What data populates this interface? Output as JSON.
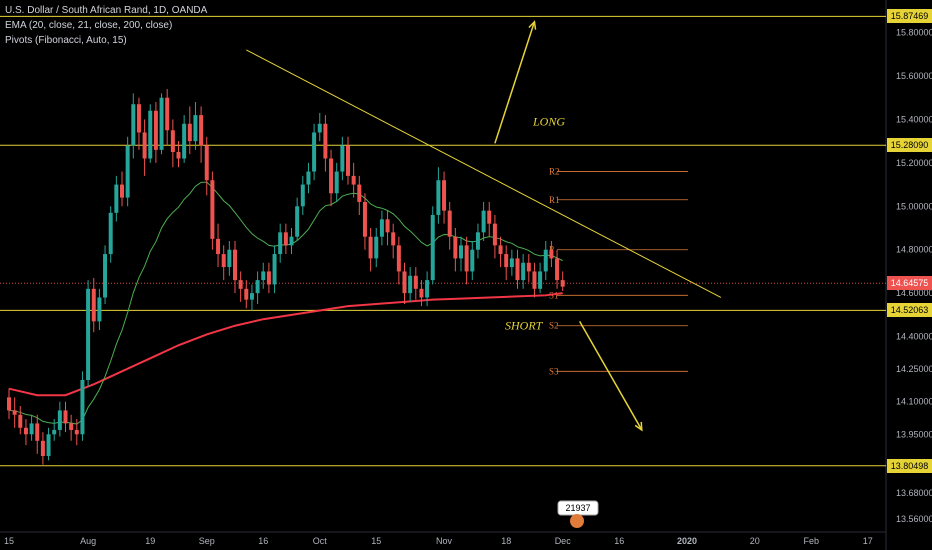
{
  "header": {
    "title": "U.S. Dollar / South African Rand, 1D, OANDA",
    "ema": "EMA (20, close, 21, close, 200, close)",
    "pivots": "Pivots (Fibonacci, Auto, 15)"
  },
  "colors": {
    "background": "#000000",
    "up": "#26a69a",
    "down": "#ef5350",
    "ema_fast": "#4caf50",
    "ema_slow": "#f23645",
    "level_line": "#e6d437",
    "pivot": "#e07b39",
    "price_line": "#ef5350"
  },
  "chart_data": {
    "type": "candlestick",
    "symbol": "USDZAR",
    "ylim": [
      13.5,
      15.95
    ],
    "y_ticks": [
      {
        "v": 15.8,
        "label": "15.80000"
      },
      {
        "v": 15.6,
        "label": "15.60000"
      },
      {
        "v": 15.4,
        "label": "15.40000"
      },
      {
        "v": 15.2,
        "label": "15.20000"
      },
      {
        "v": 15.0,
        "label": "15.00000"
      },
      {
        "v": 14.8,
        "label": "14.80000"
      },
      {
        "v": 14.6,
        "label": "14.60000"
      },
      {
        "v": 14.4,
        "label": "14.40000"
      },
      {
        "v": 14.25,
        "label": "14.25000"
      },
      {
        "v": 14.1,
        "label": "14.10000"
      },
      {
        "v": 13.95,
        "label": "13.95000"
      },
      {
        "v": 13.68,
        "label": "13.68000"
      },
      {
        "v": 13.56,
        "label": "13.56000"
      }
    ],
    "x_ticks": [
      {
        "i": 0,
        "label": "15"
      },
      {
        "i": 14,
        "label": "Aug"
      },
      {
        "i": 25,
        "label": "19"
      },
      {
        "i": 35,
        "label": "Sep"
      },
      {
        "i": 45,
        "label": "16"
      },
      {
        "i": 55,
        "label": "Oct"
      },
      {
        "i": 65,
        "label": "15"
      },
      {
        "i": 77,
        "label": "Nov"
      },
      {
        "i": 88,
        "label": "18"
      },
      {
        "i": 98,
        "label": "Dec"
      },
      {
        "i": 108,
        "label": "16"
      },
      {
        "i": 120,
        "label": "2020"
      },
      {
        "i": 132,
        "label": "20"
      },
      {
        "i": 142,
        "label": "Feb"
      },
      {
        "i": 152,
        "label": "17"
      }
    ],
    "levels": [
      {
        "v": 15.87469,
        "label": "15.87469"
      },
      {
        "v": 15.2809,
        "label": "15.28090"
      },
      {
        "v": 14.52063,
        "label": "14.52063"
      },
      {
        "v": 13.80498,
        "label": "13.80498"
      }
    ],
    "last_price": {
      "v": 14.64575,
      "label": "14.64575"
    },
    "pivots": [
      {
        "name": "R2",
        "v": 15.16
      },
      {
        "name": "R1",
        "v": 15.03
      },
      {
        "name": "P",
        "v": 14.8
      },
      {
        "name": "S1",
        "v": 14.59
      },
      {
        "name": "S2",
        "v": 14.45
      },
      {
        "name": "S3",
        "v": 14.24
      }
    ],
    "annotations": [
      {
        "text": "LONG",
        "v": 15.39
      },
      {
        "text": "SHORT",
        "v": 14.45
      }
    ],
    "trendline": {
      "from": {
        "i": 42,
        "v": 15.72
      },
      "to": {
        "i": 126,
        "v": 14.58
      }
    },
    "arrows": [
      {
        "from": {
          "i": 86,
          "v": 15.29
        },
        "to": {
          "i": 93,
          "v": 15.85
        }
      },
      {
        "from": {
          "i": 101,
          "v": 14.47
        },
        "to": {
          "i": 112,
          "v": 13.97
        }
      }
    ],
    "ema_slow_points": [
      [
        0,
        14.16
      ],
      [
        5,
        14.13
      ],
      [
        10,
        14.13
      ],
      [
        15,
        14.18
      ],
      [
        20,
        14.24
      ],
      [
        25,
        14.3
      ],
      [
        30,
        14.36
      ],
      [
        35,
        14.41
      ],
      [
        40,
        14.45
      ],
      [
        45,
        14.48
      ],
      [
        50,
        14.5
      ],
      [
        55,
        14.52
      ],
      [
        60,
        14.54
      ],
      [
        65,
        14.55
      ],
      [
        70,
        14.56
      ],
      [
        75,
        14.57
      ],
      [
        80,
        14.575
      ],
      [
        85,
        14.58
      ],
      [
        90,
        14.585
      ],
      [
        95,
        14.59
      ],
      [
        98,
        14.6
      ]
    ],
    "candles": [
      [
        14.12,
        14.06,
        14.16,
        14.02
      ],
      [
        14.06,
        14.04,
        14.12,
        13.98
      ],
      [
        14.04,
        13.98,
        14.08,
        13.95
      ],
      [
        13.98,
        13.95,
        14.02,
        13.9
      ],
      [
        13.95,
        14.0,
        14.04,
        13.92
      ],
      [
        14.0,
        13.92,
        14.04,
        13.86
      ],
      [
        13.92,
        13.85,
        13.96,
        13.81
      ],
      [
        13.85,
        13.95,
        13.98,
        13.83
      ],
      [
        13.95,
        13.97,
        14.02,
        13.92
      ],
      [
        13.97,
        14.06,
        14.1,
        13.94
      ],
      [
        14.06,
        14.0,
        14.1,
        13.96
      ],
      [
        14.0,
        13.97,
        14.04,
        13.92
      ],
      [
        13.97,
        13.95,
        14.02,
        13.9
      ],
      [
        13.95,
        14.2,
        14.24,
        13.92
      ],
      [
        14.2,
        14.62,
        14.66,
        14.17
      ],
      [
        14.62,
        14.47,
        14.67,
        14.42
      ],
      [
        14.47,
        14.58,
        14.62,
        14.43
      ],
      [
        14.58,
        14.78,
        14.82,
        14.55
      ],
      [
        14.78,
        14.97,
        15.0,
        14.74
      ],
      [
        14.97,
        15.1,
        15.14,
        14.93
      ],
      [
        15.1,
        15.04,
        15.16,
        15.0
      ],
      [
        15.04,
        15.28,
        15.32,
        15.0
      ],
      [
        15.28,
        15.47,
        15.52,
        15.22
      ],
      [
        15.47,
        15.34,
        15.5,
        15.26
      ],
      [
        15.34,
        15.22,
        15.4,
        15.14
      ],
      [
        15.22,
        15.44,
        15.47,
        15.2
      ],
      [
        15.44,
        15.26,
        15.48,
        15.2
      ],
      [
        15.26,
        15.5,
        15.52,
        15.24
      ],
      [
        15.5,
        15.35,
        15.54,
        15.28
      ],
      [
        15.35,
        15.25,
        15.4,
        15.18
      ],
      [
        15.25,
        15.22,
        15.3,
        15.18
      ],
      [
        15.22,
        15.38,
        15.42,
        15.2
      ],
      [
        15.38,
        15.3,
        15.46,
        15.24
      ],
      [
        15.3,
        15.42,
        15.48,
        15.26
      ],
      [
        15.42,
        15.28,
        15.46,
        15.2
      ],
      [
        15.28,
        15.12,
        15.32,
        15.05
      ],
      [
        15.12,
        14.85,
        15.16,
        14.8
      ],
      [
        14.85,
        14.78,
        14.92,
        14.72
      ],
      [
        14.78,
        14.72,
        14.82,
        14.66
      ],
      [
        14.72,
        14.8,
        14.84,
        14.68
      ],
      [
        14.8,
        14.66,
        14.84,
        14.6
      ],
      [
        14.66,
        14.62,
        14.7,
        14.56
      ],
      [
        14.62,
        14.57,
        14.66,
        14.53
      ],
      [
        14.57,
        14.6,
        14.64,
        14.52
      ],
      [
        14.6,
        14.66,
        14.7,
        14.55
      ],
      [
        14.66,
        14.7,
        14.74,
        14.62
      ],
      [
        14.7,
        14.64,
        14.74,
        14.6
      ],
      [
        14.64,
        14.78,
        14.82,
        14.6
      ],
      [
        14.78,
        14.88,
        14.92,
        14.74
      ],
      [
        14.88,
        14.82,
        14.92,
        14.78
      ],
      [
        14.82,
        14.86,
        14.9,
        14.78
      ],
      [
        14.86,
        15.0,
        15.04,
        14.84
      ],
      [
        15.0,
        15.1,
        15.14,
        14.96
      ],
      [
        15.1,
        15.16,
        15.2,
        15.06
      ],
      [
        15.16,
        15.34,
        15.38,
        15.12
      ],
      [
        15.34,
        15.38,
        15.43,
        15.3
      ],
      [
        15.38,
        15.22,
        15.42,
        15.16
      ],
      [
        15.22,
        15.06,
        15.26,
        15.0
      ],
      [
        15.06,
        15.16,
        15.2,
        15.02
      ],
      [
        15.16,
        15.28,
        15.32,
        15.12
      ],
      [
        15.28,
        15.14,
        15.32,
        15.1
      ],
      [
        15.14,
        15.1,
        15.2,
        15.04
      ],
      [
        15.1,
        15.02,
        15.14,
        14.96
      ],
      [
        15.02,
        14.86,
        15.06,
        14.8
      ],
      [
        14.86,
        14.76,
        14.9,
        14.7
      ],
      [
        14.76,
        14.86,
        14.9,
        14.72
      ],
      [
        14.86,
        14.94,
        14.98,
        14.82
      ],
      [
        14.94,
        14.88,
        14.98,
        14.82
      ],
      [
        14.88,
        14.82,
        14.92,
        14.76
      ],
      [
        14.82,
        14.7,
        14.86,
        14.64
      ],
      [
        14.7,
        14.6,
        14.74,
        14.55
      ],
      [
        14.6,
        14.68,
        14.72,
        14.56
      ],
      [
        14.68,
        14.62,
        14.72,
        14.57
      ],
      [
        14.62,
        14.58,
        14.66,
        14.54
      ],
      [
        14.58,
        14.66,
        14.7,
        14.54
      ],
      [
        14.66,
        14.96,
        15.0,
        14.64
      ],
      [
        14.96,
        15.12,
        15.18,
        14.92
      ],
      [
        15.12,
        14.98,
        15.16,
        14.92
      ],
      [
        14.98,
        14.86,
        15.02,
        14.8
      ],
      [
        14.86,
        14.76,
        14.9,
        14.7
      ],
      [
        14.76,
        14.82,
        14.86,
        14.7
      ],
      [
        14.82,
        14.7,
        14.86,
        14.64
      ],
      [
        14.7,
        14.8,
        14.84,
        14.66
      ],
      [
        14.8,
        14.88,
        14.92,
        14.76
      ],
      [
        14.88,
        14.98,
        15.02,
        14.84
      ],
      [
        14.98,
        14.92,
        15.02,
        14.86
      ],
      [
        14.92,
        14.82,
        14.96,
        14.76
      ],
      [
        14.82,
        14.78,
        14.86,
        14.72
      ],
      [
        14.78,
        14.72,
        14.82,
        14.66
      ],
      [
        14.72,
        14.76,
        14.8,
        14.68
      ],
      [
        14.76,
        14.66,
        14.8,
        14.62
      ],
      [
        14.66,
        14.74,
        14.78,
        14.62
      ],
      [
        14.74,
        14.7,
        14.78,
        14.65
      ],
      [
        14.7,
        14.62,
        14.74,
        14.58
      ],
      [
        14.62,
        14.7,
        14.74,
        14.6
      ],
      [
        14.7,
        14.8,
        14.84,
        14.66
      ],
      [
        14.8,
        14.76,
        14.84,
        14.72
      ],
      [
        14.76,
        14.66,
        14.8,
        14.62
      ],
      [
        14.66,
        14.63,
        14.7,
        14.61
      ]
    ]
  },
  "footer": {
    "counter": "21937"
  }
}
